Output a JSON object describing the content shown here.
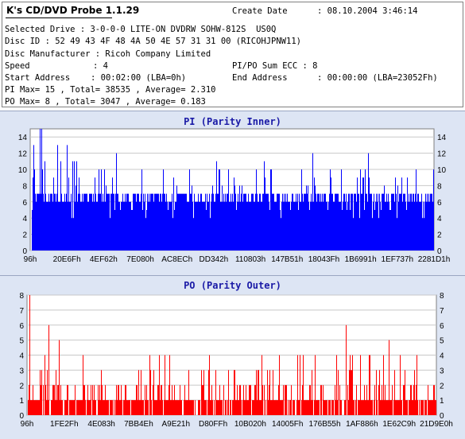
{
  "app": {
    "title": "K's CD/DVD Probe 1.1.29"
  },
  "info": {
    "create_date_label": "Create Date",
    "create_date_value": ": 08.10.2004 3:46:14",
    "selected_drive": "Selected Drive : 3-0-0-0 LITE-ON DVDRW SOHW-812S  US0Q",
    "disc_id": "Disc ID : 52 49 43 4F 48 4A 50 4E 57 31 31 00 (RICOHJPNW11)",
    "disc_manufacturer": "Disc Manufacturer : Ricoh Company Limited",
    "speed_label": "Speed",
    "speed_value": ": 4",
    "pipo_sum": "PI/PO Sum ECC : 8",
    "start_label": "Start Address",
    "start_value": ": 00:02:00 (LBA=0h)",
    "end_label": "End Address",
    "end_value": ": 00:00:00 (LBA=23052Fh)",
    "pi_stats": "PI Max= 15 , Total= 38535 , Average= 2.310",
    "po_stats": "PO Max= 8 , Total= 3047 , Average= 0.183"
  },
  "chart_data": [
    {
      "type": "bar",
      "title": "PI (Parity Inner)",
      "color": "#0000ff",
      "ylim": [
        0,
        15
      ],
      "yticks": [
        0,
        2,
        4,
        6,
        8,
        10,
        12,
        14
      ],
      "grid": true,
      "categories": [
        "96h",
        "20E6Fh",
        "4EF62h",
        "7E080h",
        "AC8ECh",
        "DD342h",
        "110803h",
        "147B51h",
        "18043Fh",
        "1B6991h",
        "1EF737h",
        "2281D1h"
      ],
      "baseline": 6,
      "max": 15,
      "average": 2.31
    },
    {
      "type": "bar",
      "title": "PO (Parity Outer)",
      "color": "#ff0000",
      "ylim": [
        0,
        8
      ],
      "yticks": [
        0,
        1,
        2,
        3,
        4,
        5,
        6,
        7,
        8
      ],
      "grid": true,
      "categories": [
        "96h",
        "1FE2Fh",
        "4E083h",
        "7BB4Eh",
        "A9E21h",
        "D80FFh",
        "10B020h",
        "14005Fh",
        "176B55h",
        "1AF886h",
        "1E62C9h",
        "21D9E0h"
      ],
      "max": 8,
      "average": 0.183
    }
  ]
}
